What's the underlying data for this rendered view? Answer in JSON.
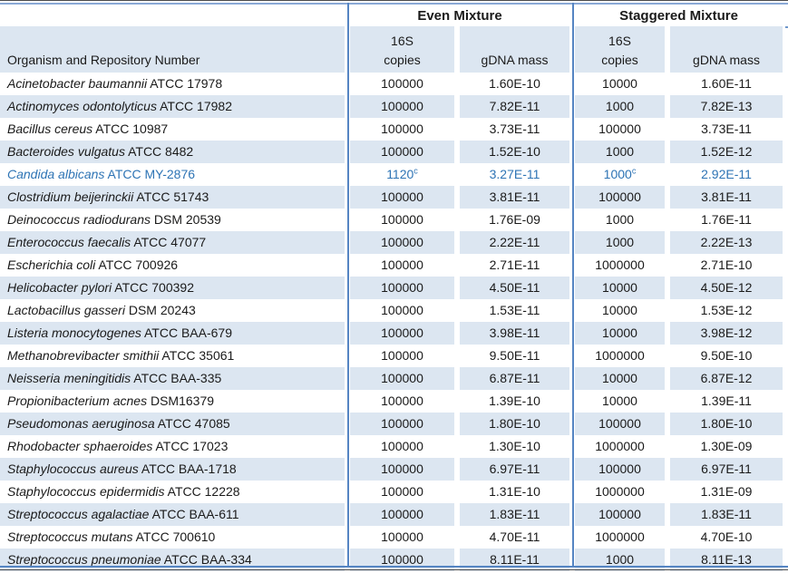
{
  "table": {
    "headers": {
      "organism": "Organism and Repository Number",
      "groups": [
        {
          "label": "Even Mixture",
          "copies_top": "16S",
          "copies_bottom": "copies",
          "gdna": "gDNA mass"
        },
        {
          "label": "Staggered Mixture",
          "copies_top": "16S",
          "copies_bottom": "copies",
          "gdna": "gDNA mass"
        }
      ]
    },
    "footnote_marker": "c",
    "colors": {
      "stripe": "#dce6f1",
      "divider_blue": "#5585c3",
      "highlight_text": "#2e74b5"
    },
    "rows": [
      {
        "organism": "Acinetobacter baumannii",
        "repository": "ATCC 17978",
        "even_copies": "100000",
        "even_copies_sup": "",
        "even_gdna": "1.60E-10",
        "stag_copies": "10000",
        "stag_copies_sup": "",
        "stag_gdna": "1.60E-11",
        "highlight": false
      },
      {
        "organism": "Actinomyces odontolyticus",
        "repository": "ATCC 17982",
        "even_copies": "100000",
        "even_copies_sup": "",
        "even_gdna": "7.82E-11",
        "stag_copies": "1000",
        "stag_copies_sup": "",
        "stag_gdna": "7.82E-13",
        "highlight": false
      },
      {
        "organism": "Bacillus cereus",
        "repository": "ATCC 10987",
        "even_copies": "100000",
        "even_copies_sup": "",
        "even_gdna": "3.73E-11",
        "stag_copies": "100000",
        "stag_copies_sup": "",
        "stag_gdna": "3.73E-11",
        "highlight": false
      },
      {
        "organism": "Bacteroides vulgatus",
        "repository": "ATCC 8482",
        "even_copies": "100000",
        "even_copies_sup": "",
        "even_gdna": "1.52E-10",
        "stag_copies": "1000",
        "stag_copies_sup": "",
        "stag_gdna": "1.52E-12",
        "highlight": false
      },
      {
        "organism": "Candida albicans",
        "repository": "ATCC MY-2876",
        "even_copies": "1120",
        "even_copies_sup": "c",
        "even_gdna": "3.27E-11",
        "stag_copies": "1000",
        "stag_copies_sup": "c",
        "stag_gdna": "2.92E-11",
        "highlight": true
      },
      {
        "organism": "Clostridium beijerinckii",
        "repository": "ATCC 51743",
        "even_copies": "100000",
        "even_copies_sup": "",
        "even_gdna": "3.81E-11",
        "stag_copies": "100000",
        "stag_copies_sup": "",
        "stag_gdna": "3.81E-11",
        "highlight": false
      },
      {
        "organism": "Deinococcus radiodurans",
        "repository": "DSM 20539",
        "even_copies": "100000",
        "even_copies_sup": "",
        "even_gdna": "1.76E-09",
        "stag_copies": "1000",
        "stag_copies_sup": "",
        "stag_gdna": "1.76E-11",
        "highlight": false
      },
      {
        "organism": "Enterococcus faecalis",
        "repository": "ATCC 47077",
        "even_copies": "100000",
        "even_copies_sup": "",
        "even_gdna": "2.22E-11",
        "stag_copies": "1000",
        "stag_copies_sup": "",
        "stag_gdna": "2.22E-13",
        "highlight": false
      },
      {
        "organism": "Escherichia coli",
        "repository": "ATCC 700926",
        "even_copies": "100000",
        "even_copies_sup": "",
        "even_gdna": "2.71E-11",
        "stag_copies": "1000000",
        "stag_copies_sup": "",
        "stag_gdna": "2.71E-10",
        "highlight": false
      },
      {
        "organism": "Helicobacter pylori",
        "repository": "ATCC 700392",
        "even_copies": "100000",
        "even_copies_sup": "",
        "even_gdna": "4.50E-11",
        "stag_copies": "10000",
        "stag_copies_sup": "",
        "stag_gdna": "4.50E-12",
        "highlight": false
      },
      {
        "organism": "Lactobacillus gasseri",
        "repository": "DSM 20243",
        "even_copies": "100000",
        "even_copies_sup": "",
        "even_gdna": "1.53E-11",
        "stag_copies": "10000",
        "stag_copies_sup": "",
        "stag_gdna": "1.53E-12",
        "highlight": false
      },
      {
        "organism": "Listeria monocytogenes",
        "repository": "ATCC BAA-679",
        "even_copies": "100000",
        "even_copies_sup": "",
        "even_gdna": "3.98E-11",
        "stag_copies": "10000",
        "stag_copies_sup": "",
        "stag_gdna": "3.98E-12",
        "highlight": false
      },
      {
        "organism": "Methanobrevibacter smithii",
        "repository": "ATCC 35061",
        "even_copies": "100000",
        "even_copies_sup": "",
        "even_gdna": "9.50E-11",
        "stag_copies": "1000000",
        "stag_copies_sup": "",
        "stag_gdna": "9.50E-10",
        "highlight": false
      },
      {
        "organism": "Neisseria meningitidis",
        "repository": "ATCC BAA-335",
        "even_copies": "100000",
        "even_copies_sup": "",
        "even_gdna": "6.87E-11",
        "stag_copies": "10000",
        "stag_copies_sup": "",
        "stag_gdna": "6.87E-12",
        "highlight": false
      },
      {
        "organism": "Propionibacterium acnes",
        "repository": "DSM16379",
        "even_copies": "100000",
        "even_copies_sup": "",
        "even_gdna": "1.39E-10",
        "stag_copies": "10000",
        "stag_copies_sup": "",
        "stag_gdna": "1.39E-11",
        "highlight": false
      },
      {
        "organism": "Pseudomonas aeruginosa",
        "repository": "ATCC 47085",
        "even_copies": "100000",
        "even_copies_sup": "",
        "even_gdna": "1.80E-10",
        "stag_copies": "100000",
        "stag_copies_sup": "",
        "stag_gdna": "1.80E-10",
        "highlight": false
      },
      {
        "organism": "Rhodobacter sphaeroides",
        "repository": "ATCC 17023",
        "even_copies": "100000",
        "even_copies_sup": "",
        "even_gdna": "1.30E-10",
        "stag_copies": "1000000",
        "stag_copies_sup": "",
        "stag_gdna": "1.30E-09",
        "highlight": false
      },
      {
        "organism": "Staphylococcus aureus",
        "repository": "ATCC BAA-1718",
        "even_copies": "100000",
        "even_copies_sup": "",
        "even_gdna": "6.97E-11",
        "stag_copies": "100000",
        "stag_copies_sup": "",
        "stag_gdna": "6.97E-11",
        "highlight": false
      },
      {
        "organism": "Staphylococcus epidermidis",
        "repository": "ATCC 12228",
        "even_copies": "100000",
        "even_copies_sup": "",
        "even_gdna": "1.31E-10",
        "stag_copies": "1000000",
        "stag_copies_sup": "",
        "stag_gdna": "1.31E-09",
        "highlight": false
      },
      {
        "organism": "Streptococcus agalactiae",
        "repository": "ATCC BAA-611",
        "even_copies": "100000",
        "even_copies_sup": "",
        "even_gdna": "1.83E-11",
        "stag_copies": "100000",
        "stag_copies_sup": "",
        "stag_gdna": "1.83E-11",
        "highlight": false
      },
      {
        "organism": "Streptococcus mutans",
        "repository": "ATCC 700610",
        "even_copies": "100000",
        "even_copies_sup": "",
        "even_gdna": "4.70E-11",
        "stag_copies": "1000000",
        "stag_copies_sup": "",
        "stag_gdna": "4.70E-10",
        "highlight": false
      },
      {
        "organism": "Streptococcus pneumoniae",
        "repository": "ATCC BAA-334",
        "even_copies": "100000",
        "even_copies_sup": "",
        "even_gdna": "8.11E-11",
        "stag_copies": "1000",
        "stag_copies_sup": "",
        "stag_gdna": "8.11E-13",
        "highlight": false
      }
    ]
  }
}
